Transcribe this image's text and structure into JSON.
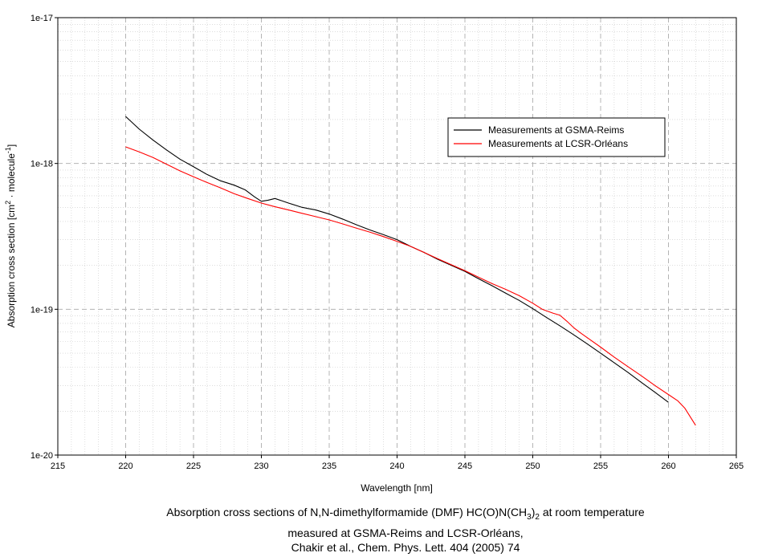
{
  "chart_data": {
    "type": "line",
    "title": "",
    "xlabel": "Wavelength [nm]",
    "ylabel_main": "Absorption cross section [cm",
    "ylabel_sup1": "2",
    "ylabel_mid": " · molecule",
    "ylabel_sup2": "-1",
    "ylabel_end": "]",
    "xlim": [
      215,
      265
    ],
    "ylim_log10": [
      -20,
      -17
    ],
    "xticks": [
      215,
      220,
      225,
      230,
      235,
      240,
      245,
      250,
      255,
      260,
      265
    ],
    "xtick_labels": [
      "215",
      "220",
      "225",
      "230",
      "235",
      "240",
      "245",
      "250",
      "255",
      "260",
      "265"
    ],
    "yticks_log10": [
      -20,
      -19,
      -18,
      -17
    ],
    "ytick_labels": [
      "1e-20",
      "1e-19",
      "1e-18",
      "1e-17"
    ],
    "grid": true,
    "legend_position": "top-right",
    "series": [
      {
        "name": "Measurements at GSMA-Reims",
        "color": "#000000",
        "x": [
          220,
          221,
          222,
          223,
          224,
          225,
          226,
          227,
          228,
          228.8,
          229.5,
          230,
          230.5,
          231,
          231.5,
          232,
          233,
          234,
          235,
          236,
          237,
          238,
          239,
          240,
          241,
          242,
          243,
          244,
          245,
          246,
          247,
          248,
          249,
          250,
          251,
          252,
          253,
          254,
          255,
          256,
          257,
          258,
          259,
          260
        ],
        "values": [
          2.1e-18,
          1.72e-18,
          1.45e-18,
          1.24e-18,
          1.07e-18,
          9.5e-19,
          8.4e-19,
          7.6e-19,
          7.1e-19,
          6.6e-19,
          5.9e-19,
          5.5e-19,
          5.6e-19,
          5.75e-19,
          5.55e-19,
          5.35e-19,
          5e-19,
          4.8e-19,
          4.5e-19,
          4.15e-19,
          3.8e-19,
          3.5e-19,
          3.25e-19,
          3e-19,
          2.7e-19,
          2.45e-19,
          2.2e-19,
          2e-19,
          1.82e-19,
          1.62e-19,
          1.45e-19,
          1.29e-19,
          1.15e-19,
          1.01e-19,
          8.8e-20,
          7.7e-20,
          6.7e-20,
          5.8e-20,
          5e-20,
          4.3e-20,
          3.7e-20,
          3.15e-20,
          2.7e-20,
          2.3e-20
        ]
      },
      {
        "name": "Measurements at LCSR-Orléans",
        "color": "#ff0000",
        "x": [
          220,
          221,
          222,
          223,
          224,
          225,
          226,
          227,
          228,
          229,
          230,
          231,
          232,
          233,
          234,
          235,
          236,
          237,
          238,
          239,
          240,
          241,
          242,
          243,
          244,
          245,
          246,
          247,
          248,
          249,
          250,
          250.7,
          251.5,
          252,
          252.5,
          253,
          253.5,
          254,
          255,
          256,
          257,
          258,
          259,
          260,
          260.7,
          261.2,
          262
        ],
        "values": [
          1.3e-18,
          1.2e-18,
          1.1e-18,
          9.9e-19,
          8.9e-19,
          8.1e-19,
          7.4e-19,
          6.8e-19,
          6.2e-19,
          5.75e-19,
          5.35e-19,
          5.05e-19,
          4.8e-19,
          4.55e-19,
          4.32e-19,
          4.1e-19,
          3.85e-19,
          3.6e-19,
          3.38e-19,
          3.15e-19,
          2.92e-19,
          2.7e-19,
          2.45e-19,
          2.22e-19,
          2.02e-19,
          1.84e-19,
          1.66e-19,
          1.5e-19,
          1.37e-19,
          1.24e-19,
          1.1e-19,
          1e-19,
          9.4e-20,
          9.1e-20,
          8.3e-20,
          7.5e-20,
          6.9e-20,
          6.4e-20,
          5.5e-20,
          4.7e-20,
          4.05e-20,
          3.5e-20,
          3e-20,
          2.6e-20,
          2.35e-20,
          2.1e-20,
          1.6e-20
        ]
      }
    ]
  },
  "caption": {
    "line1_prefix": "Absorption cross sections of N,N-dimethylformamide (DMF) HC(O)N(CH",
    "line1_sub": "3",
    "line1_mid": ")",
    "line1_sub2": "2",
    "line1_suffix": " at room temperature",
    "line2": "measured at GSMA-Reims and LCSR-Orléans,",
    "line3": "Chakir et al., Chem. Phys. Lett. 404 (2005) 74"
  }
}
